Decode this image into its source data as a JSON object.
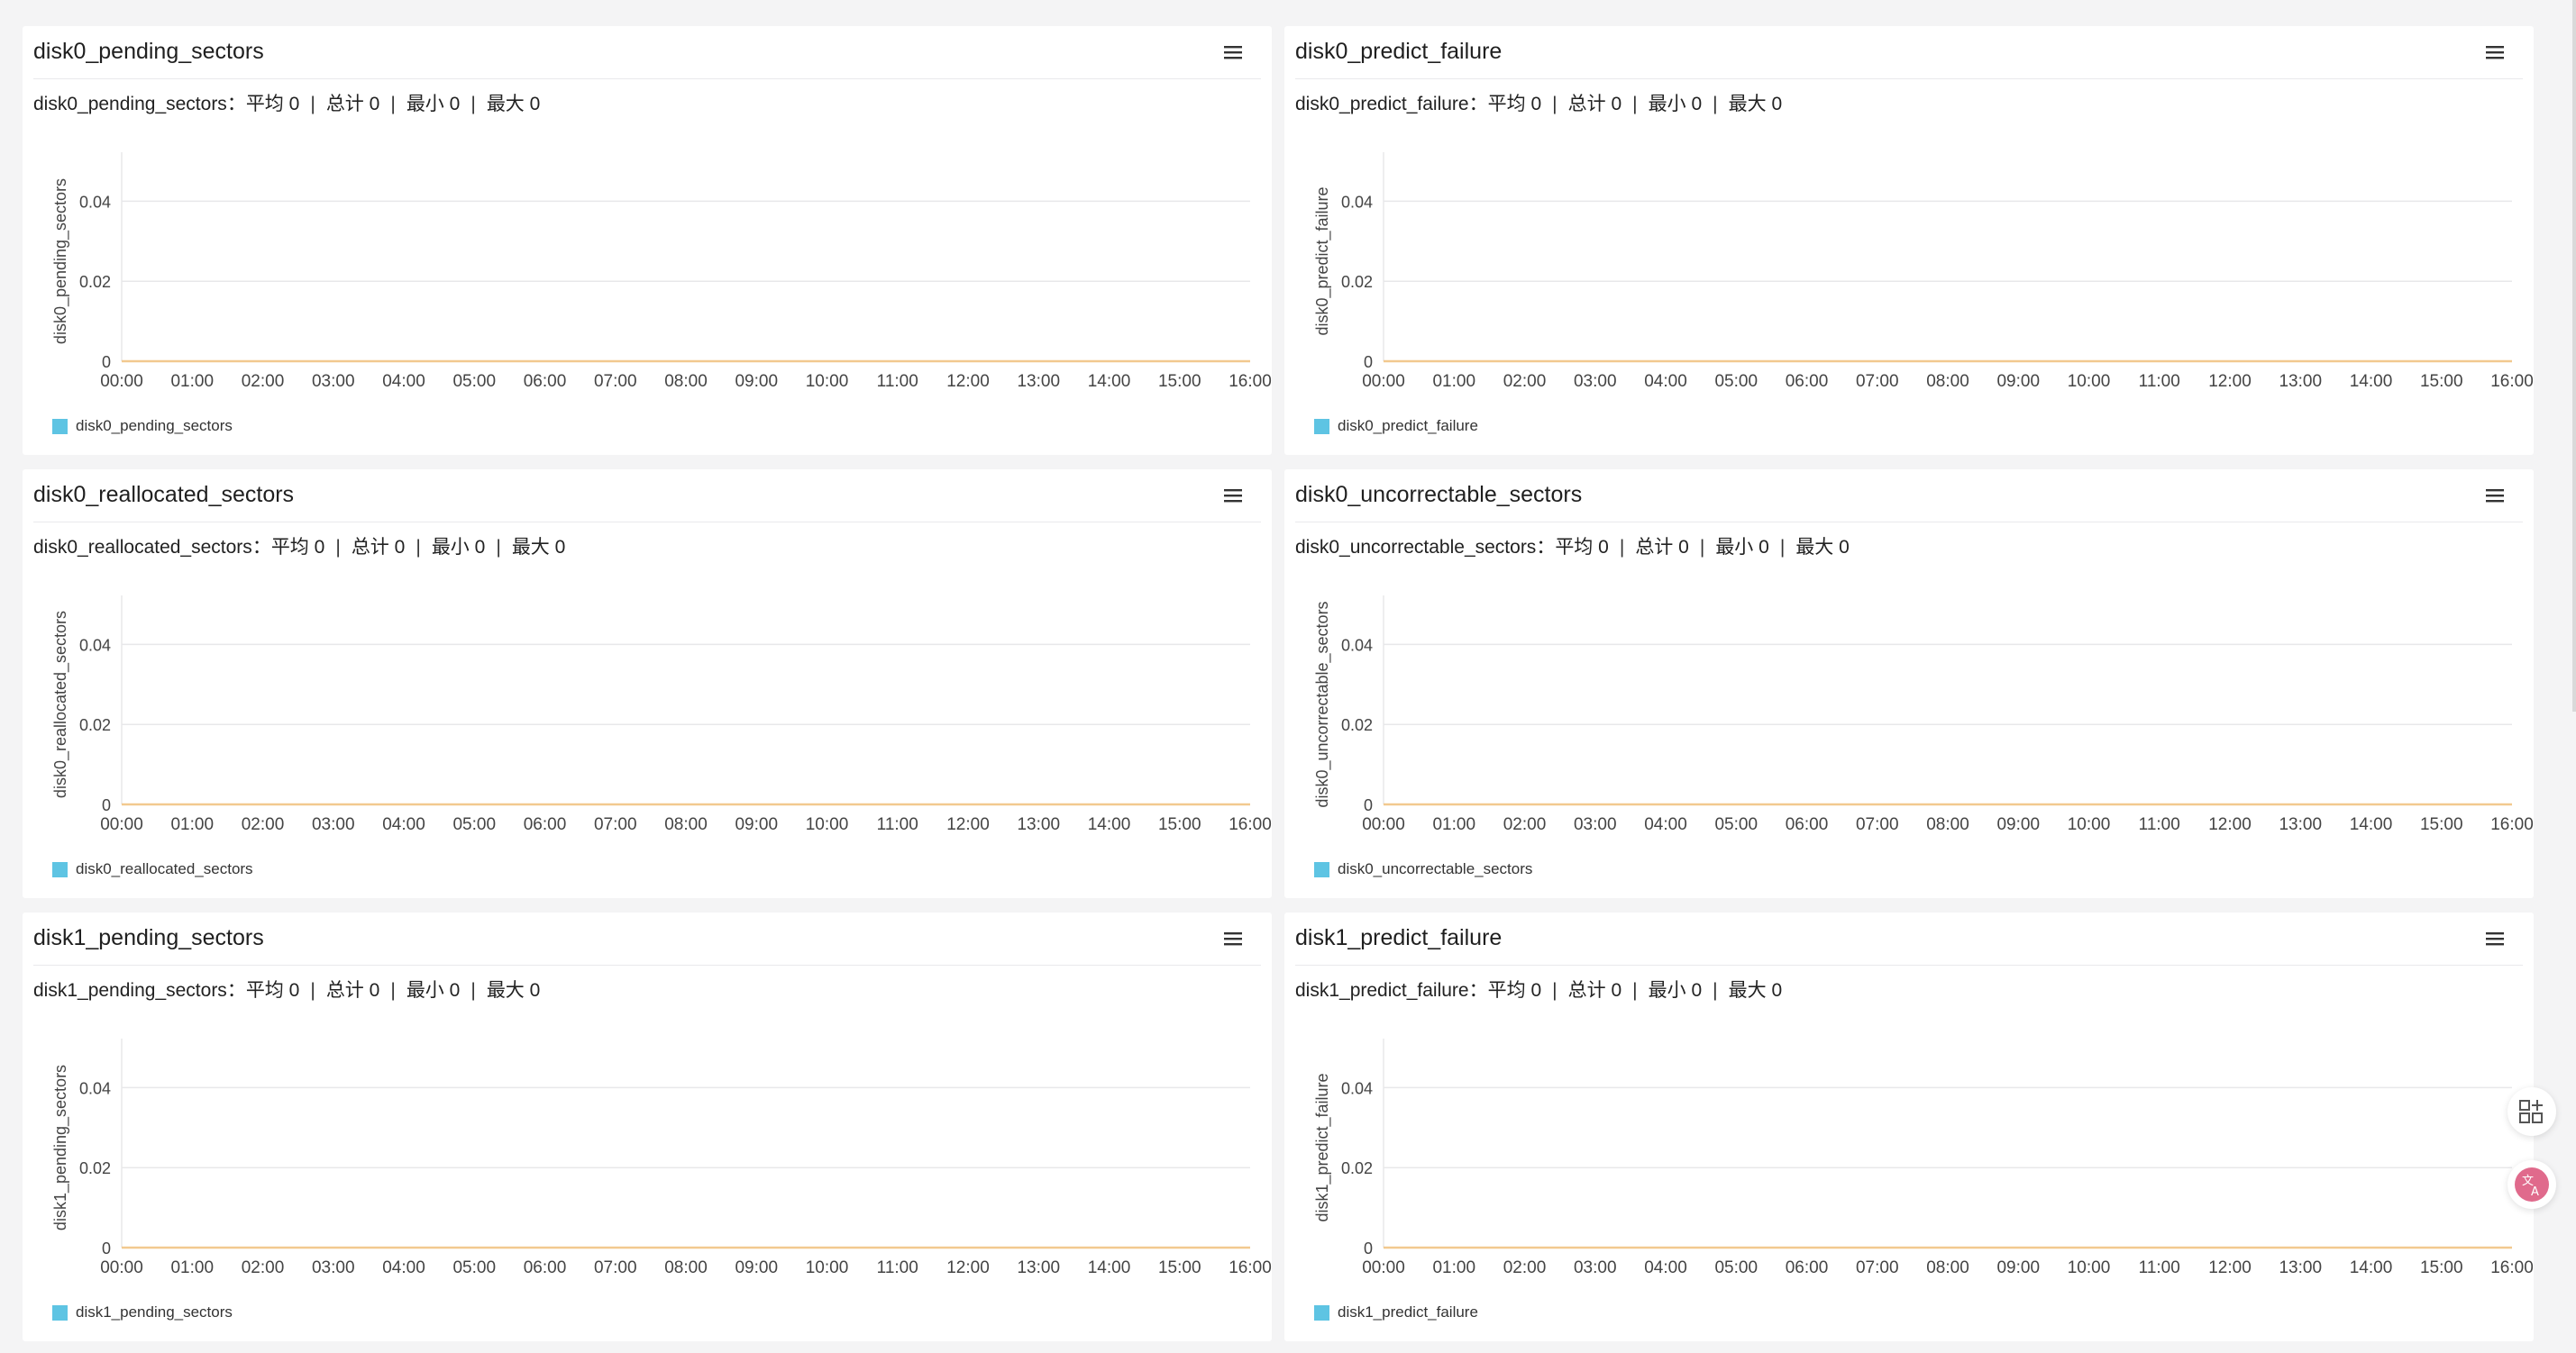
{
  "colors": {
    "series": "#5ec4e3",
    "line": "#f2c98f",
    "grid": "#e8e8ea",
    "axis": "#d0d0d4",
    "text": "#444444",
    "translate_icon": "#e06a8c"
  },
  "summary_labels": {
    "avg": "平均",
    "total": "总计",
    "min": "最小",
    "max": "最大",
    "colon": "："
  },
  "floating": {
    "apps_icon": "apps-plus-icon",
    "translate_icon": "translate-icon"
  },
  "panels": [
    {
      "title": "disk0_pending_sectors",
      "metric": "disk0_pending_sectors",
      "avg": "0",
      "total": "0",
      "min": "0",
      "max": "0",
      "ylabel": "disk0_pending_sectors",
      "legend": "disk0_pending_sectors",
      "menu_icon": "hamburger-menu-icon"
    },
    {
      "title": "disk0_predict_failure",
      "metric": "disk0_predict_failure",
      "avg": "0",
      "total": "0",
      "min": "0",
      "max": "0",
      "ylabel": "disk0_predict_failure",
      "legend": "disk0_predict_failure",
      "menu_icon": "hamburger-menu-icon"
    },
    {
      "title": "disk0_reallocated_sectors",
      "metric": "disk0_reallocated_sectors",
      "avg": "0",
      "total": "0",
      "min": "0",
      "max": "0",
      "ylabel": "disk0_reallocated_sectors",
      "legend": "disk0_reallocated_sectors",
      "menu_icon": "hamburger-menu-icon"
    },
    {
      "title": "disk0_uncorrectable_sectors",
      "metric": "disk0_uncorrectable_sectors",
      "avg": "0",
      "total": "0",
      "min": "0",
      "max": "0",
      "ylabel": "disk0_uncorrectable_sectors",
      "legend": "disk0_uncorrectable_sectors",
      "menu_icon": "hamburger-menu-icon"
    },
    {
      "title": "disk1_pending_sectors",
      "metric": "disk1_pending_sectors",
      "avg": "0",
      "total": "0",
      "min": "0",
      "max": "0",
      "ylabel": "disk1_pending_sectors",
      "legend": "disk1_pending_sectors",
      "menu_icon": "hamburger-menu-icon"
    },
    {
      "title": "disk1_predict_failure",
      "metric": "disk1_predict_failure",
      "avg": "0",
      "total": "0",
      "min": "0",
      "max": "0",
      "ylabel": "disk1_predict_failure",
      "legend": "disk1_predict_failure",
      "menu_icon": "hamburger-menu-icon"
    }
  ],
  "chart_data": [
    {
      "type": "line",
      "title": "disk0_pending_sectors",
      "ylabel": "disk0_pending_sectors",
      "x": [
        "00:00",
        "01:00",
        "02:00",
        "03:00",
        "04:00",
        "05:00",
        "06:00",
        "07:00",
        "08:00",
        "09:00",
        "10:00",
        "11:00",
        "12:00",
        "13:00",
        "14:00",
        "15:00",
        "16:00"
      ],
      "y_ticks": [
        "0",
        "0.02",
        "0.04"
      ],
      "ylim": [
        0,
        0.05
      ],
      "series": [
        {
          "name": "disk0_pending_sectors",
          "values": [
            0,
            0,
            0,
            0,
            0,
            0,
            0,
            0,
            0,
            0,
            0,
            0,
            0,
            0,
            0,
            0,
            0
          ]
        }
      ],
      "grid": true,
      "legend_position": "bottom-left"
    },
    {
      "type": "line",
      "title": "disk0_predict_failure",
      "ylabel": "disk0_predict_failure",
      "x": [
        "00:00",
        "01:00",
        "02:00",
        "03:00",
        "04:00",
        "05:00",
        "06:00",
        "07:00",
        "08:00",
        "09:00",
        "10:00",
        "11:00",
        "12:00",
        "13:00",
        "14:00",
        "15:00",
        "16:00"
      ],
      "y_ticks": [
        "0",
        "0.02",
        "0.04"
      ],
      "ylim": [
        0,
        0.05
      ],
      "series": [
        {
          "name": "disk0_predict_failure",
          "values": [
            0,
            0,
            0,
            0,
            0,
            0,
            0,
            0,
            0,
            0,
            0,
            0,
            0,
            0,
            0,
            0,
            0
          ]
        }
      ],
      "grid": true,
      "legend_position": "bottom-left"
    },
    {
      "type": "line",
      "title": "disk0_reallocated_sectors",
      "ylabel": "disk0_reallocated_sectors",
      "x": [
        "00:00",
        "01:00",
        "02:00",
        "03:00",
        "04:00",
        "05:00",
        "06:00",
        "07:00",
        "08:00",
        "09:00",
        "10:00",
        "11:00",
        "12:00",
        "13:00",
        "14:00",
        "15:00",
        "16:00"
      ],
      "y_ticks": [
        "0",
        "0.02",
        "0.04"
      ],
      "ylim": [
        0,
        0.05
      ],
      "series": [
        {
          "name": "disk0_reallocated_sectors",
          "values": [
            0,
            0,
            0,
            0,
            0,
            0,
            0,
            0,
            0,
            0,
            0,
            0,
            0,
            0,
            0,
            0,
            0
          ]
        }
      ],
      "grid": true,
      "legend_position": "bottom-left"
    },
    {
      "type": "line",
      "title": "disk0_uncorrectable_sectors",
      "ylabel": "disk0_uncorrectable_sectors",
      "x": [
        "00:00",
        "01:00",
        "02:00",
        "03:00",
        "04:00",
        "05:00",
        "06:00",
        "07:00",
        "08:00",
        "09:00",
        "10:00",
        "11:00",
        "12:00",
        "13:00",
        "14:00",
        "15:00",
        "16:00"
      ],
      "y_ticks": [
        "0",
        "0.02",
        "0.04"
      ],
      "ylim": [
        0,
        0.05
      ],
      "series": [
        {
          "name": "disk0_uncorrectable_sectors",
          "values": [
            0,
            0,
            0,
            0,
            0,
            0,
            0,
            0,
            0,
            0,
            0,
            0,
            0,
            0,
            0,
            0,
            0
          ]
        }
      ],
      "grid": true,
      "legend_position": "bottom-left"
    },
    {
      "type": "line",
      "title": "disk1_pending_sectors",
      "ylabel": "disk1_pending_sectors",
      "x": [
        "00:00",
        "01:00",
        "02:00",
        "03:00",
        "04:00",
        "05:00",
        "06:00",
        "07:00",
        "08:00",
        "09:00",
        "10:00",
        "11:00",
        "12:00",
        "13:00",
        "14:00",
        "15:00",
        "16:00"
      ],
      "y_ticks": [
        "0",
        "0.02",
        "0.04"
      ],
      "ylim": [
        0,
        0.05
      ],
      "series": [
        {
          "name": "disk1_pending_sectors",
          "values": [
            0,
            0,
            0,
            0,
            0,
            0,
            0,
            0,
            0,
            0,
            0,
            0,
            0,
            0,
            0,
            0,
            0
          ]
        }
      ],
      "grid": true,
      "legend_position": "bottom-left"
    },
    {
      "type": "line",
      "title": "disk1_predict_failure",
      "ylabel": "disk1_predict_failure",
      "x": [
        "00:00",
        "01:00",
        "02:00",
        "03:00",
        "04:00",
        "05:00",
        "06:00",
        "07:00",
        "08:00",
        "09:00",
        "10:00",
        "11:00",
        "12:00",
        "13:00",
        "14:00",
        "15:00",
        "16:00"
      ],
      "y_ticks": [
        "0",
        "0.02",
        "0.04"
      ],
      "ylim": [
        0,
        0.05
      ],
      "series": [
        {
          "name": "disk1_predict_failure",
          "values": [
            0,
            0,
            0,
            0,
            0,
            0,
            0,
            0,
            0,
            0,
            0,
            0,
            0,
            0,
            0,
            0,
            0
          ]
        }
      ],
      "grid": true,
      "legend_position": "bottom-left"
    }
  ]
}
